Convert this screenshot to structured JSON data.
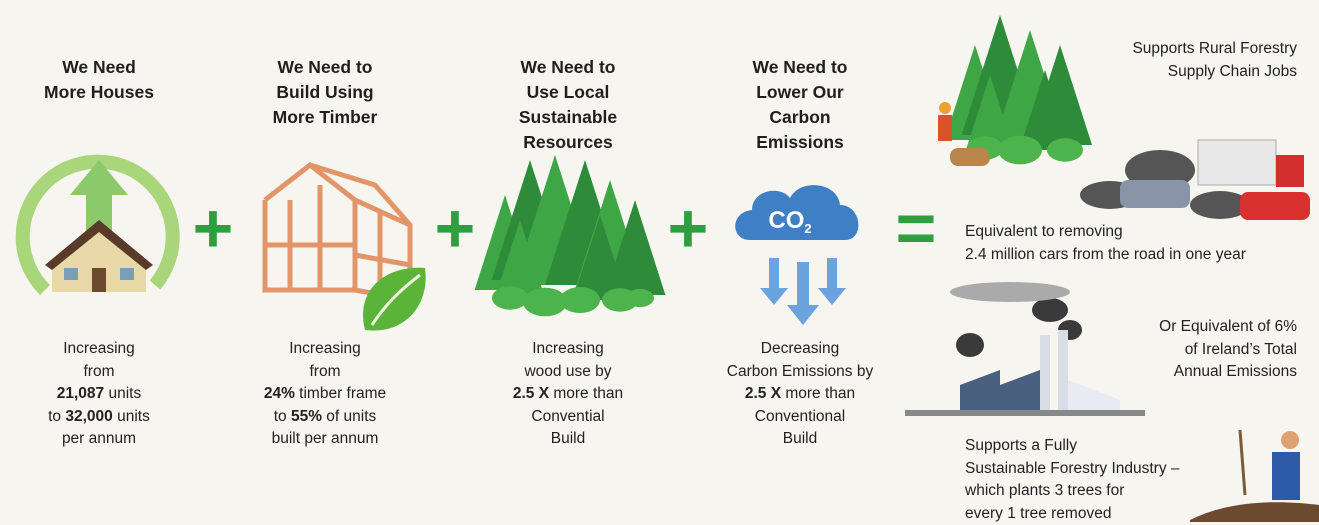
{
  "columns": [
    {
      "title": [
        "We Need",
        "More Houses"
      ],
      "description": [
        [
          "Increasing"
        ],
        [
          "from"
        ],
        [
          {
            "bold": "21,087"
          },
          "units"
        ],
        [
          "to",
          {
            "bold": "32,000"
          },
          "units"
        ],
        [
          "per annum"
        ]
      ]
    },
    {
      "title": [
        "We Need to",
        "Build Using",
        "More Timber"
      ],
      "description": [
        [
          "Increasing"
        ],
        [
          "from"
        ],
        [
          {
            "bold": "24%"
          },
          "timber frame"
        ],
        [
          "to",
          {
            "bold": "55%"
          },
          "of units"
        ],
        [
          "built per annum"
        ]
      ]
    },
    {
      "title": [
        "We Need to",
        "Use Local",
        "Sustainable",
        "Resources"
      ],
      "description": [
        [
          "Increasing"
        ],
        [
          "wood use by"
        ],
        [
          {
            "bold": "2.5 X"
          },
          "more than"
        ],
        [
          "Convential"
        ],
        [
          "Build"
        ]
      ]
    },
    {
      "title": [
        "We Need to",
        "Lower Our",
        "Carbon",
        "Emissions"
      ],
      "description": [
        [
          "Decreasing"
        ],
        [
          "Carbon Emissions by"
        ],
        [
          {
            "bold": "2.5 X"
          },
          "more than"
        ],
        [
          "Conventional"
        ],
        [
          "Build"
        ]
      ]
    }
  ],
  "operators": [
    "+",
    "+",
    "+",
    "="
  ],
  "co2": {
    "main": "CO",
    "sub": "2"
  },
  "outcomes": [
    {
      "lines": [
        "Supports Rural Forestry",
        "Supply Chain Jobs"
      ]
    },
    {
      "lines": [
        "Equivalent to removing",
        "2.4 million cars from the road in one year"
      ]
    },
    {
      "lines": [
        "Or Equivalent of 6%",
        "of Ireland’s Total",
        "Annual Emissions"
      ]
    },
    {
      "lines": [
        "Supports a Fully",
        "Sustainable Forestry Industry –",
        "which plants 3 trees for",
        "every 1 tree removed"
      ]
    }
  ]
}
